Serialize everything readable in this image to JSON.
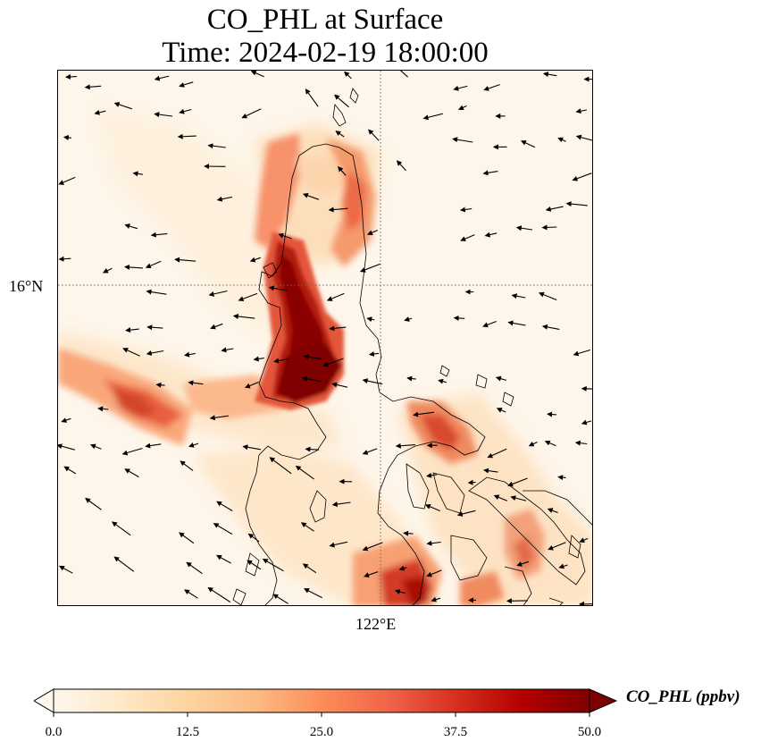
{
  "title": {
    "line1": "CO_PHL at Surface",
    "line2": "Time: 2024-02-19 18:00:00"
  },
  "map": {
    "variable": "CO_PHL",
    "level": "Surface",
    "gridlines": "dotted",
    "x_tick_labels": [
      "122°E"
    ],
    "y_tick_labels": [
      "16°N"
    ],
    "coastline_color": "#000000",
    "wind_vectors": "black arrows, predominantly westward"
  },
  "colorbar": {
    "label": "CO_PHL (ppbv)",
    "ticks": [
      "0.0",
      "12.5",
      "25.0",
      "37.5",
      "50.0"
    ],
    "min": 0.0,
    "max": 50.0,
    "extend": "both",
    "colormap": "OrRd",
    "colors": [
      "#fff7ec",
      "#fee8c8",
      "#fdd49e",
      "#fdbb84",
      "#fc8d59",
      "#ef6548",
      "#d7301f",
      "#b30000",
      "#7f0000"
    ]
  }
}
